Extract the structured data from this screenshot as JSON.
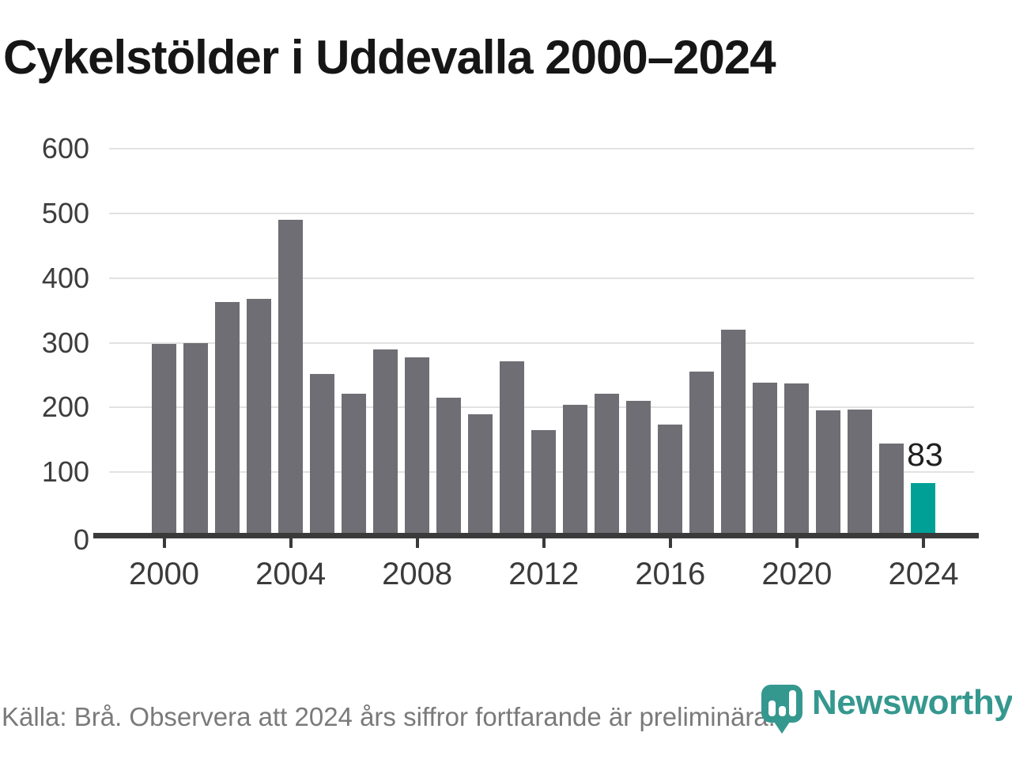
{
  "title": "Cykelstölder i Uddevalla 2000–2024",
  "footer": {
    "source_note": "Källa: Brå. Observera att 2024 års siffror fortfarande är preliminära."
  },
  "logo": {
    "text": "Newsworthy",
    "icon": "newsworthy-bar-chart-bubble-icon",
    "color": "#35988f"
  },
  "chart_data": {
    "type": "bar",
    "title": "Cykelstölder i Uddevalla 2000–2024",
    "categories": [
      2000,
      2001,
      2002,
      2003,
      2004,
      2005,
      2006,
      2007,
      2008,
      2009,
      2010,
      2011,
      2012,
      2013,
      2014,
      2015,
      2016,
      2017,
      2018,
      2019,
      2020,
      2021,
      2022,
      2023,
      2024
    ],
    "values": [
      298,
      300,
      363,
      368,
      490,
      252,
      221,
      290,
      277,
      215,
      190,
      272,
      165,
      204,
      221,
      210,
      174,
      256,
      320,
      238,
      237,
      195,
      197,
      144,
      83
    ],
    "highlight_category": 2024,
    "annotation_text": "83",
    "x_tick_years": [
      2000,
      2004,
      2008,
      2012,
      2016,
      2020,
      2024
    ],
    "y_ticks": [
      0,
      100,
      200,
      300,
      400,
      500,
      600
    ],
    "ylim": [
      0,
      600
    ],
    "grid": "horizontal",
    "legend": "none",
    "colors": {
      "bar": "#6e6e74",
      "bar_highlight": "#00a096",
      "axis": "#3a3a3a",
      "gridline": "#e2e2e2",
      "tick_label": "#3b3b3b"
    }
  }
}
